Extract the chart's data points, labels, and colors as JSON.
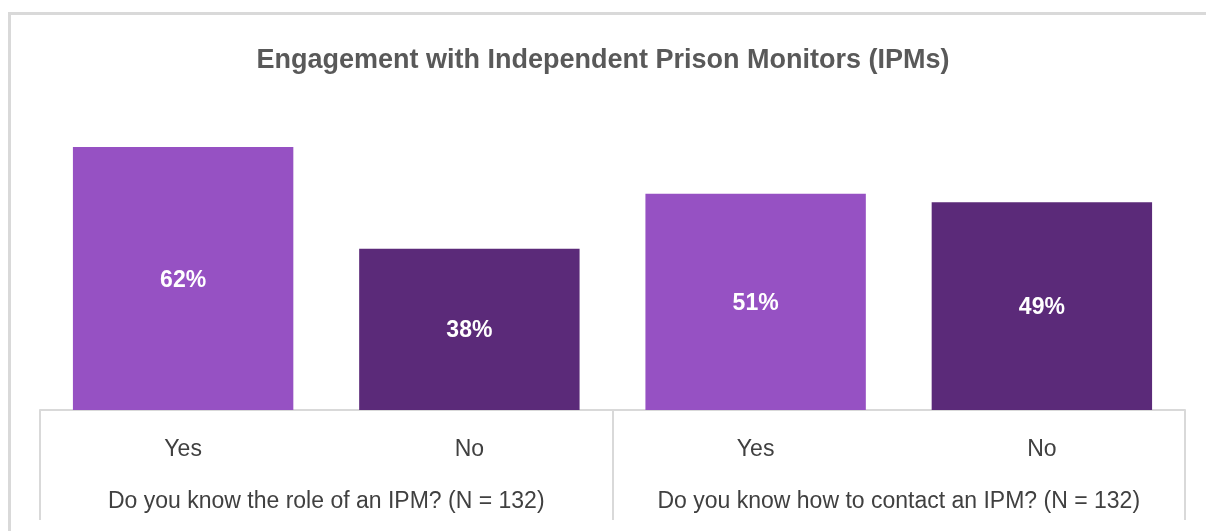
{
  "chart_data": {
    "type": "bar",
    "title": "Engagement with Independent Prison Monitors (IPMs)",
    "categories": [
      "Yes",
      "No",
      "Yes",
      "No"
    ],
    "values": [
      62,
      38,
      51,
      49
    ],
    "colors": [
      "#9651c3",
      "#5b2a79",
      "#9651c3",
      "#5b2a79"
    ],
    "value_labels": [
      "62%",
      "38%",
      "51%",
      "49%"
    ],
    "annotations": [
      "Do you know the role of an IPM? (N = 132)",
      "Do you know how to contact an IPM? (N = 132)"
    ]
  }
}
